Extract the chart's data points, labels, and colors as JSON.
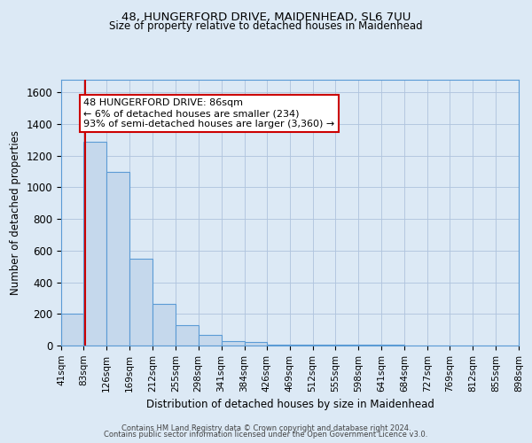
{
  "title": "48, HUNGERFORD DRIVE, MAIDENHEAD, SL6 7UU",
  "subtitle": "Size of property relative to detached houses in Maidenhead",
  "xlabel": "Distribution of detached houses by size in Maidenhead",
  "ylabel": "Number of detached properties",
  "bin_edges": [
    41,
    83,
    126,
    169,
    212,
    255,
    298,
    341,
    384,
    426,
    469,
    512,
    555,
    598,
    641,
    684,
    727,
    769,
    812,
    855,
    898
  ],
  "bin_heights": [
    200,
    1290,
    1100,
    550,
    265,
    130,
    65,
    30,
    25,
    5,
    5,
    5,
    5,
    5,
    3,
    2,
    0,
    0,
    0,
    0
  ],
  "bar_color": "#c5d8ec",
  "bar_edge_color": "#5b9bd5",
  "red_line_x": 86,
  "annotation_line1": "48 HUNGERFORD DRIVE: 86sqm",
  "annotation_line2": "← 6% of detached houses are smaller (234)",
  "annotation_line3": "93% of semi-detached houses are larger (3,360) →",
  "annotation_box_color": "#ffffff",
  "annotation_border_color": "#cc0000",
  "ylim": [
    0,
    1680
  ],
  "yticks": [
    0,
    200,
    400,
    600,
    800,
    1000,
    1200,
    1400,
    1600
  ],
  "background_color": "#dce9f5",
  "footer_line1": "Contains HM Land Registry data © Crown copyright and database right 2024.",
  "footer_line2": "Contains public sector information licensed under the Open Government Licence v3.0."
}
